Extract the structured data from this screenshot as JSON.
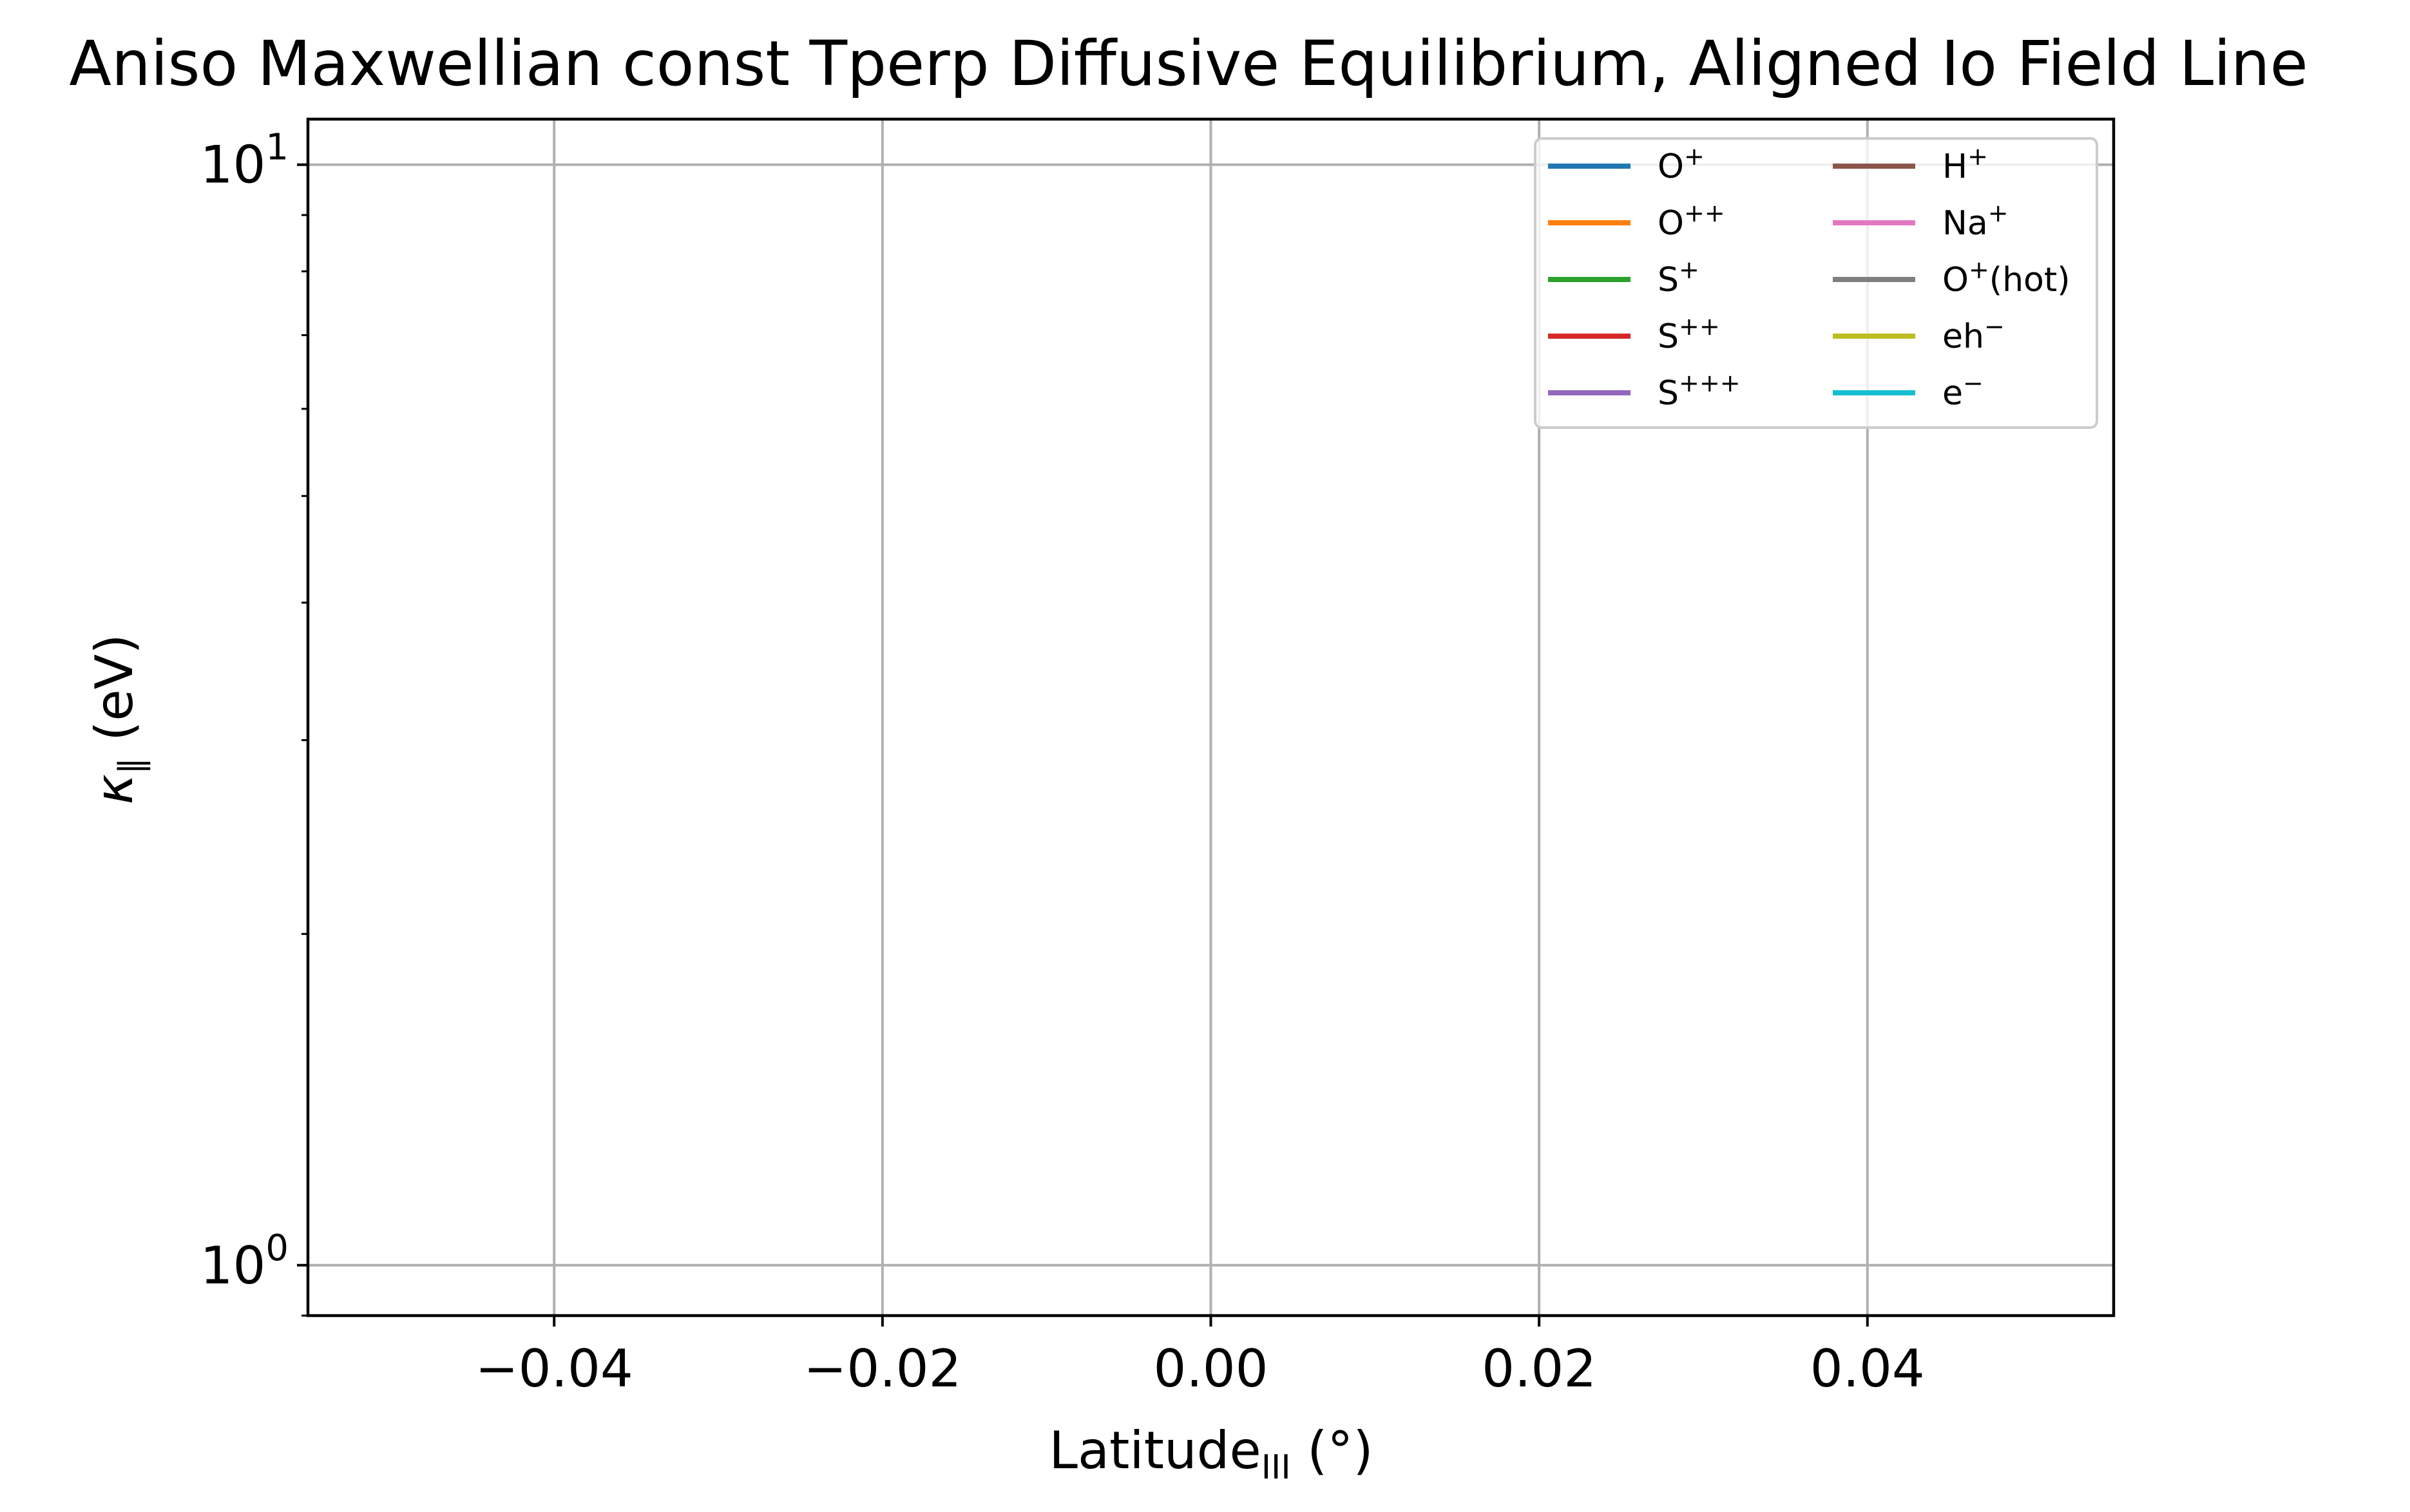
{
  "chart_data": {
    "type": "line",
    "title": "Aniso Maxwellian const Tperp Diffusive Equilibrium, Aligned Io Field Line",
    "xlabel": {
      "main": "Latitude",
      "sub": "III",
      "suffix": " (°)"
    },
    "ylabel": {
      "main": "κ",
      "sub": "‖",
      "suffix": "  (eV)"
    },
    "xlim": [
      -0.055,
      0.055
    ],
    "ylim": [
      0.9,
      11.0
    ],
    "yscale": "log",
    "grid": true,
    "x_ticks": [
      {
        "value": -0.04,
        "label": "−0.04"
      },
      {
        "value": -0.02,
        "label": "−0.02"
      },
      {
        "value": 0.0,
        "label": "0.00"
      },
      {
        "value": 0.02,
        "label": "0.02"
      },
      {
        "value": 0.04,
        "label": "0.04"
      }
    ],
    "y_major_ticks": [
      {
        "value": 1,
        "base": "10",
        "exp": "0"
      },
      {
        "value": 10,
        "base": "10",
        "exp": "1"
      }
    ],
    "y_minor_ticks": [
      0.9,
      2,
      3,
      4,
      5,
      6,
      7,
      8,
      9
    ],
    "legend_position": "top-right",
    "legend_columns": 2,
    "series": [
      {
        "name": "O+",
        "base": "O",
        "sup": "+",
        "after": "",
        "color": "#1f77b4",
        "values": []
      },
      {
        "name": "O++",
        "base": "O",
        "sup": "++",
        "after": "",
        "color": "#ff7f0e",
        "values": []
      },
      {
        "name": "S+",
        "base": "S",
        "sup": "+",
        "after": "",
        "color": "#2ca02c",
        "values": []
      },
      {
        "name": "S++",
        "base": "S",
        "sup": "++",
        "after": "",
        "color": "#d62728",
        "values": []
      },
      {
        "name": "S+++",
        "base": "S",
        "sup": "+++",
        "after": "",
        "color": "#9467bd",
        "values": []
      },
      {
        "name": "H+",
        "base": "H",
        "sup": "+",
        "after": "",
        "color": "#8c564b",
        "values": []
      },
      {
        "name": "Na+",
        "base": "Na",
        "sup": "+",
        "after": "",
        "color": "#e377c2",
        "values": []
      },
      {
        "name": "O+(hot)",
        "base": "O",
        "sup": "+",
        "after": "(hot)",
        "color": "#7f7f7f",
        "values": []
      },
      {
        "name": "eh−",
        "base": "eh",
        "sup": "−",
        "after": "",
        "color": "#bcbd22",
        "values": []
      },
      {
        "name": "e−",
        "base": "e",
        "sup": "−",
        "after": "",
        "color": "#17becf",
        "values": []
      }
    ]
  }
}
